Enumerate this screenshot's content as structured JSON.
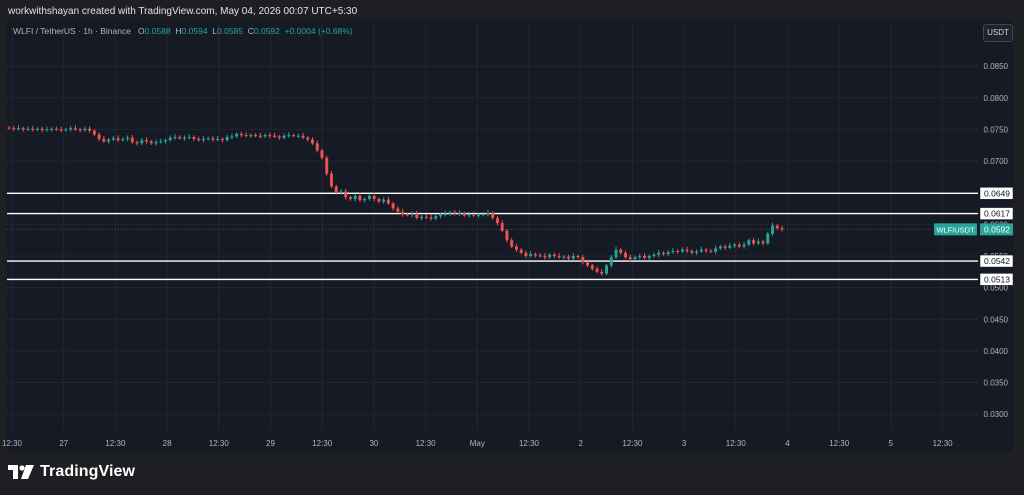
{
  "header": {
    "credit": "workwithshayan created with TradingView.com, May 04, 2026 00:07 UTC+5:30"
  },
  "legend": {
    "symbol": "WLFI / TetherUS · 1h · Binance",
    "o_label": "O",
    "o": "0.0588",
    "h_label": "H",
    "h": "0.0594",
    "l_label": "L",
    "l": "0.0585",
    "c_label": "C",
    "c": "0.0592",
    "change": "+0.0004 (+0.68%)"
  },
  "currency_button": "USDT",
  "footer": {
    "brand": "TradingView"
  },
  "colors": {
    "up": "#26a69a",
    "down": "#ef5350",
    "background": "#161a25",
    "grid": "#232631",
    "level_line": "#ffffff",
    "price_label": "#26a69a"
  },
  "chart_data": {
    "type": "candlestick",
    "symbol": "WLFIUSDT",
    "ylim": [
      0.0275,
      0.0885
    ],
    "y_ticks": [
      "0.0850",
      "0.0800",
      "0.0750",
      "0.0700",
      "0.0650",
      "0.0600",
      "0.0550",
      "0.0500",
      "0.0450",
      "0.0400",
      "0.0350",
      "0.0300"
    ],
    "x_ticks": [
      "12:30",
      "27",
      "12:30",
      "28",
      "12:30",
      "29",
      "12:30",
      "30",
      "12:30",
      "May",
      "12:30",
      "2",
      "12:30",
      "3",
      "12:30",
      "4",
      "12:30",
      "5",
      "12:30"
    ],
    "horizontal_levels": [
      "0.0649",
      "0.0617",
      "0.0542",
      "0.0513"
    ],
    "last_price": {
      "label": "WLFIUSDT",
      "value": "0.0592"
    },
    "close_series_hourly": [
      0.0752,
      0.0751,
      0.0752,
      0.075,
      0.0751,
      0.075,
      0.0751,
      0.0749,
      0.075,
      0.0751,
      0.075,
      0.0749,
      0.075,
      0.0752,
      0.075,
      0.0749,
      0.0751,
      0.0748,
      0.0742,
      0.0735,
      0.0731,
      0.0734,
      0.0736,
      0.0733,
      0.0735,
      0.0737,
      0.073,
      0.0728,
      0.0733,
      0.0731,
      0.0728,
      0.073,
      0.0731,
      0.0733,
      0.0737,
      0.0738,
      0.0736,
      0.0737,
      0.0738,
      0.0735,
      0.0733,
      0.0735,
      0.0736,
      0.0734,
      0.0735,
      0.0733,
      0.0738,
      0.0739,
      0.0743,
      0.0741,
      0.074,
      0.0741,
      0.074,
      0.0739,
      0.0741,
      0.074,
      0.0739,
      0.0737,
      0.074,
      0.0741,
      0.074,
      0.074,
      0.0737,
      0.0734,
      0.0728,
      0.0717,
      0.0705,
      0.068,
      0.066,
      0.065,
      0.0652,
      0.0643,
      0.064,
      0.0645,
      0.0638,
      0.064,
      0.0645,
      0.064,
      0.0636,
      0.0639,
      0.0633,
      0.0625,
      0.062,
      0.0616,
      0.0615,
      0.0617,
      0.061,
      0.0612,
      0.0611,
      0.0609,
      0.0613,
      0.0615,
      0.0617,
      0.0619,
      0.0617,
      0.0618,
      0.0614,
      0.0616,
      0.0614,
      0.0615,
      0.0616,
      0.0618,
      0.061,
      0.0602,
      0.059,
      0.0575,
      0.0565,
      0.056,
      0.0555,
      0.055,
      0.0553,
      0.0551,
      0.055,
      0.0548,
      0.0552,
      0.055,
      0.0548,
      0.0549,
      0.0546,
      0.055,
      0.0548,
      0.054,
      0.0535,
      0.053,
      0.0525,
      0.0522,
      0.0535,
      0.0548,
      0.056,
      0.0555,
      0.0548,
      0.0545,
      0.0548,
      0.055,
      0.0547,
      0.055,
      0.0552,
      0.0555,
      0.0553,
      0.0556,
      0.0558,
      0.0557,
      0.056,
      0.0558,
      0.0555,
      0.0557,
      0.056,
      0.0558,
      0.0557,
      0.0562,
      0.0565,
      0.0563,
      0.0566,
      0.0568,
      0.0565,
      0.0568,
      0.0575,
      0.057,
      0.0573,
      0.057,
      0.0585,
      0.0598,
      0.0594,
      0.0592
    ]
  }
}
